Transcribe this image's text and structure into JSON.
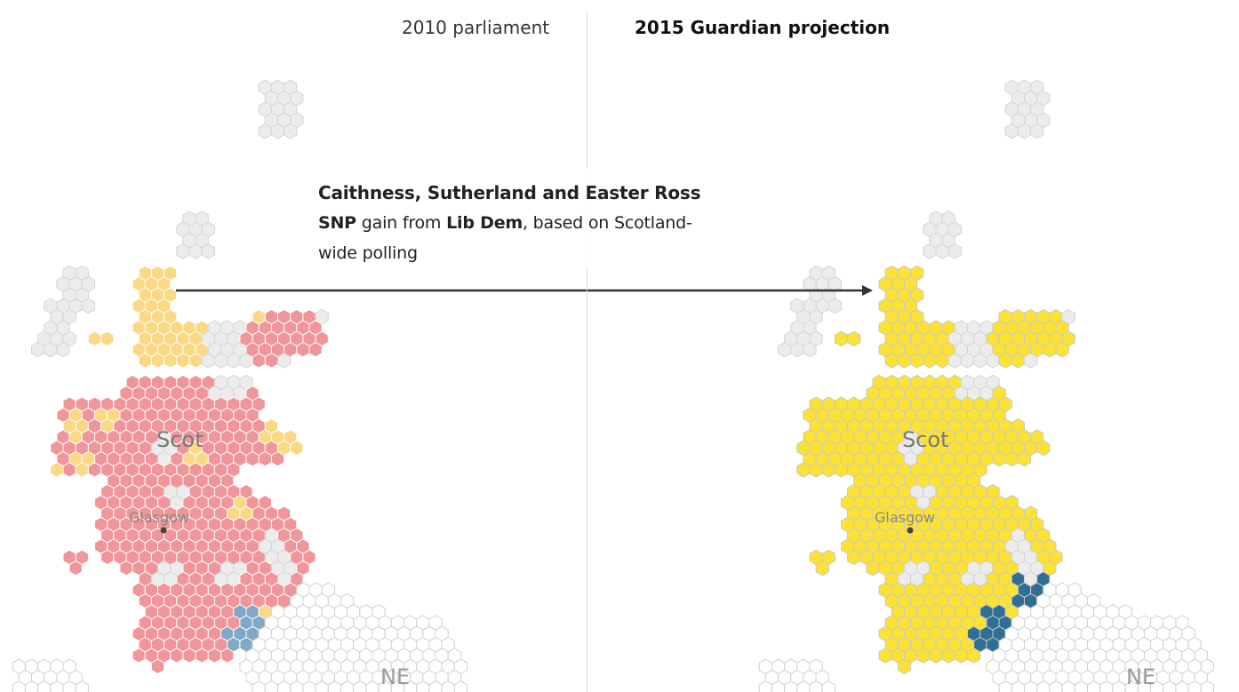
{
  "headers": {
    "left": "2010 parliament",
    "right": "2015 Guardian projection"
  },
  "tooltip": {
    "seat": "Caithness, Sutherland and Easter Ross",
    "winner": "SNP",
    "gain_text": " gain from ",
    "previous": "Lib Dem",
    "basis_line1": ", based on Scotland-",
    "basis_line2": "wide polling"
  },
  "map_labels": {
    "region": "Scot",
    "city": "Glasgow",
    "region_south": "NE"
  },
  "party_colors": {
    "labour": "#f0959a",
    "libdem_2010": "#fbd883",
    "snp": "#fce234",
    "conservative_2010": "#7fa9c6",
    "conservative_2015": "#2f6f95",
    "unselected": "#ececec",
    "outline": "#c8c8c8"
  }
}
